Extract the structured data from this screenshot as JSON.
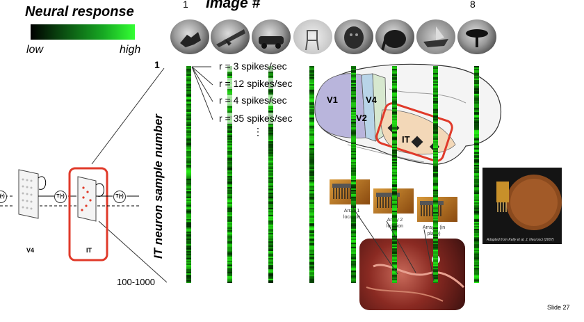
{
  "legend": {
    "title": "Neural response",
    "low": "low",
    "high": "high"
  },
  "images": {
    "title": "Image #",
    "first": "1",
    "last": "8",
    "thumbs": [
      "cat",
      "plane",
      "car",
      "chair",
      "face",
      "elephant",
      "boat",
      "chair2"
    ]
  },
  "axis": {
    "title": "IT neuron sample number",
    "top": "1",
    "bottom": "100-1000"
  },
  "rates": [
    "r = 3 spikes/sec",
    "r = 12 spikes/sec",
    "r = 4 spikes/sec",
    "r = 35 spikes/sec"
  ],
  "rates_continuation": "⋮",
  "brain": {
    "v1": "V1",
    "v2": "V2",
    "v4": "V4",
    "it": "IT"
  },
  "arrays": [
    "Array 1 location",
    "Array 2 location",
    "Array 3 (in place)"
  ],
  "credit": "Adapted from Kelly et al. J. Neurosci (2007)",
  "diagram": {
    "v4_label": "V4",
    "it_label": "IT",
    "transform": "T(•)"
  },
  "slide_number": "Slide  27",
  "colors": {
    "accent_red": "#e03a2a",
    "green": "#22cc22"
  }
}
